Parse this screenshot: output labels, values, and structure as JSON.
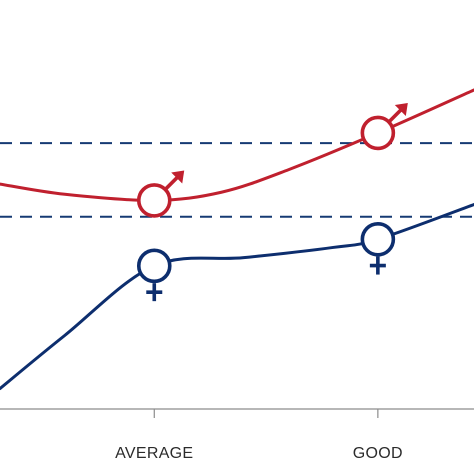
{
  "chart_data": {
    "type": "line",
    "categories": [
      "AVERAGE",
      "GOOD"
    ],
    "x_visible": [
      -0.69,
      1.43
    ],
    "ylim": [
      0,
      2
    ],
    "reference_lines": [
      1.3,
      0.94
    ],
    "series": [
      {
        "marker": "male-symbol",
        "color": "#c0202e",
        "x": [
          -0.69,
          -0.4,
          0,
          0.3,
          0.6,
          1,
          1.43
        ],
        "y": [
          1.1,
          1.05,
          1.02,
          1.06,
          1.17,
          1.35,
          1.56
        ],
        "marked_points": [
          0,
          1
        ]
      },
      {
        "marker": "female-symbol",
        "color": "#0d2e6e",
        "x": [
          -0.69,
          -0.4,
          0,
          0.4,
          0.8,
          1,
          1.43
        ],
        "y": [
          0.1,
          0.36,
          0.7,
          0.74,
          0.79,
          0.83,
          1.0
        ],
        "marked_points": [
          0,
          1
        ]
      }
    ],
    "grid": false,
    "legend": "none"
  }
}
